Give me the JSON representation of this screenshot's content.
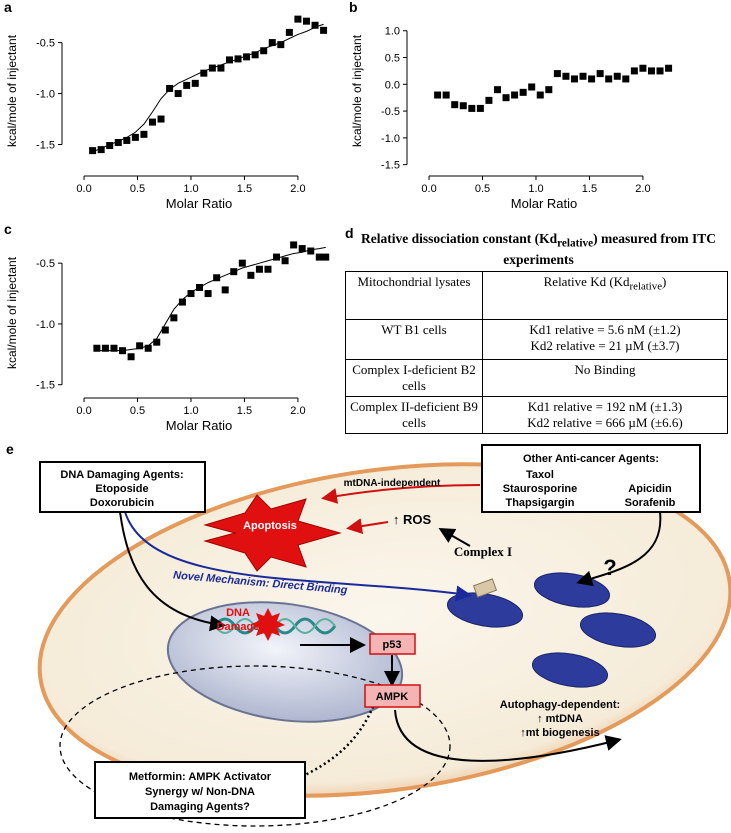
{
  "chart_data": [
    {
      "type": "scatter",
      "panel": "a",
      "xlabel": "Molar Ratio",
      "ylabel": "kcal/mole of injectant",
      "x": [
        0.08,
        0.16,
        0.24,
        0.32,
        0.4,
        0.48,
        0.56,
        0.64,
        0.72,
        0.8,
        0.88,
        0.96,
        1.04,
        1.12,
        1.2,
        1.28,
        1.36,
        1.44,
        1.52,
        1.6,
        1.68,
        1.76,
        1.84,
        1.92,
        2.0,
        2.08,
        2.16,
        2.24
      ],
      "series": [
        {
          "color": "#000000",
          "marker": "square",
          "values": [
            -1.56,
            -1.55,
            -1.51,
            -1.48,
            -1.46,
            -1.43,
            -1.4,
            -1.28,
            -1.25,
            -0.95,
            -1.0,
            -0.92,
            -0.9,
            -0.8,
            -0.75,
            -0.75,
            -0.67,
            -0.66,
            -0.64,
            -0.62,
            -0.58,
            -0.5,
            -0.52,
            -0.4,
            -0.27,
            -0.29,
            -0.33,
            -0.38
          ]
        },
        {
          "color": "#000000",
          "marker": "line",
          "values": [
            -1.57,
            -1.54,
            -1.5,
            -1.47,
            -1.43,
            -1.38,
            -1.3,
            -1.18,
            -1.05,
            -0.96,
            -0.9,
            -0.86,
            -0.82,
            -0.78,
            -0.75,
            -0.72,
            -0.69,
            -0.66,
            -0.63,
            -0.6,
            -0.56,
            -0.53,
            -0.5,
            -0.46,
            -0.42,
            -0.39,
            -0.35,
            -0.32
          ]
        }
      ],
      "xlim": [
        -0.15,
        2.3
      ],
      "ylim": [
        -1.75,
        -0.2
      ],
      "xticks": [
        {
          "value": 0,
          "label": "0.0"
        },
        0.5,
        {
          "value": 1,
          "label": "1.0"
        },
        1.5,
        {
          "value": 2,
          "label": "2.0"
        }
      ],
      "yticks": [
        -1.5,
        {
          "value": -1,
          "label": "-1.0"
        },
        -0.5
      ]
    },
    {
      "type": "scatter",
      "panel": "b",
      "xlabel": "Molar Ratio",
      "ylabel": "kcal/mole of injectant",
      "x": [
        0.08,
        0.16,
        0.24,
        0.32,
        0.4,
        0.48,
        0.56,
        0.64,
        0.72,
        0.8,
        0.88,
        0.96,
        1.04,
        1.12,
        1.2,
        1.28,
        1.36,
        1.44,
        1.52,
        1.6,
        1.68,
        1.76,
        1.84,
        1.92,
        2.0,
        2.08,
        2.16,
        2.24
      ],
      "series": [
        {
          "color": "#000000",
          "marker": "square",
          "values": [
            -0.2,
            -0.2,
            -0.38,
            -0.4,
            -0.45,
            -0.45,
            -0.3,
            -0.1,
            -0.25,
            -0.2,
            -0.15,
            -0.05,
            -0.2,
            -0.1,
            0.2,
            0.15,
            0.1,
            0.15,
            0.1,
            0.2,
            0.1,
            0.15,
            0.1,
            0.25,
            0.3,
            0.25,
            0.25,
            0.3
          ]
        }
      ],
      "xlim": [
        -0.15,
        2.3
      ],
      "ylim": [
        -1.6,
        1.35
      ],
      "xticks": [
        {
          "value": 0,
          "label": "0.0"
        },
        0.5,
        {
          "value": 1,
          "label": "1.0"
        },
        1.5,
        {
          "value": 2,
          "label": "2.0"
        }
      ],
      "yticks": [
        -1.5,
        {
          "value": -1,
          "label": "-1.0"
        },
        -0.5,
        {
          "value": 0,
          "label": "0.0"
        },
        0.5,
        {
          "value": 1,
          "label": "1.0"
        }
      ]
    },
    {
      "type": "scatter",
      "panel": "c",
      "xlabel": "Molar Ratio",
      "ylabel": "kcal/mole of injectant",
      "x": [
        0.12,
        0.2,
        0.28,
        0.36,
        0.44,
        0.52,
        0.6,
        0.68,
        0.76,
        0.84,
        0.92,
        1.0,
        1.08,
        1.16,
        1.24,
        1.32,
        1.4,
        1.48,
        1.56,
        1.64,
        1.72,
        1.8,
        1.88,
        1.96,
        2.04,
        2.12,
        2.2,
        2.26
      ],
      "series": [
        {
          "color": "#000000",
          "marker": "square",
          "values": [
            -1.2,
            -1.2,
            -1.2,
            -1.22,
            -1.27,
            -1.18,
            -1.2,
            -1.15,
            -1.05,
            -0.95,
            -0.82,
            -0.75,
            -0.7,
            -0.75,
            -0.62,
            -0.72,
            -0.57,
            -0.5,
            -0.6,
            -0.55,
            -0.55,
            -0.45,
            -0.48,
            -0.35,
            -0.38,
            -0.4,
            -0.45,
            -0.45
          ]
        },
        {
          "color": "#000000",
          "marker": "line",
          "values": [
            -1.22,
            -1.22,
            -1.22,
            -1.22,
            -1.21,
            -1.2,
            -1.18,
            -1.12,
            -1.0,
            -0.88,
            -0.8,
            -0.74,
            -0.7,
            -0.66,
            -0.63,
            -0.6,
            -0.57,
            -0.54,
            -0.52,
            -0.5,
            -0.48,
            -0.46,
            -0.44,
            -0.42,
            -0.41,
            -0.39,
            -0.38,
            -0.37
          ]
        }
      ],
      "xlim": [
        -0.15,
        2.3
      ],
      "ylim": [
        -1.56,
        -0.26
      ],
      "xticks": [
        {
          "value": 0,
          "label": "0.0"
        },
        0.5,
        {
          "value": 1,
          "label": "1.0"
        },
        1.5,
        {
          "value": 2,
          "label": "2.0"
        }
      ],
      "yticks": [
        -1.5,
        {
          "value": -1,
          "label": "-1.0"
        },
        -0.5
      ]
    }
  ],
  "table": {
    "label": "d",
    "title": {
      "pre": "Relative dissociation constant (Kd",
      "sub": "relative",
      "post": ") measured from ITC experiments"
    },
    "header": {
      "col1": "Mitochondrial lysates",
      "col2": {
        "pre": "Relative Kd (Kd",
        "sub": "relative",
        "post": ")"
      }
    },
    "rows": [
      [
        "WT B1 cells",
        [
          "Kd1 relative = 5.6 nM (±1.2)",
          "Kd2 relative = 21 µM (±3.7)"
        ]
      ],
      [
        "Complex I-deficient B2 cells",
        [
          "No Binding"
        ]
      ],
      [
        "Complex II-deficient B9 cells",
        [
          "Kd1 relative = 192 nM (±1.3)",
          "Kd2 relative = 666 µM (±6.6)"
        ]
      ]
    ]
  },
  "diagram": {
    "label": "e",
    "dna_agents": {
      "title": "DNA Damaging Agents:",
      "items": [
        "Etoposide",
        "Doxorubicin"
      ]
    },
    "other_agents": {
      "title": "Other Anti-cancer Agents:",
      "items": [
        "Taxol",
        "Staurosporine",
        "Thapsigargin",
        "Apicidin",
        "Sorafenib"
      ]
    },
    "mtdna_independent": "mtDNA-independent",
    "apoptosis": "Apoptosis",
    "ros": "↑ ROS",
    "complex1": "Complex I",
    "novel": "Novel Mechanism: Direct Binding",
    "question": "?",
    "dna_damage": [
      "DNA",
      "Damage"
    ],
    "p53": "p53",
    "ampk": "AMPK",
    "autophagy": [
      "Autophagy-dependent:",
      "↑ mtDNA",
      "↑mt biogenesis"
    ],
    "metformin": [
      "Metformin: AMPK Activator",
      "Synergy w/ Non-DNA",
      "Damaging Agents?"
    ]
  }
}
